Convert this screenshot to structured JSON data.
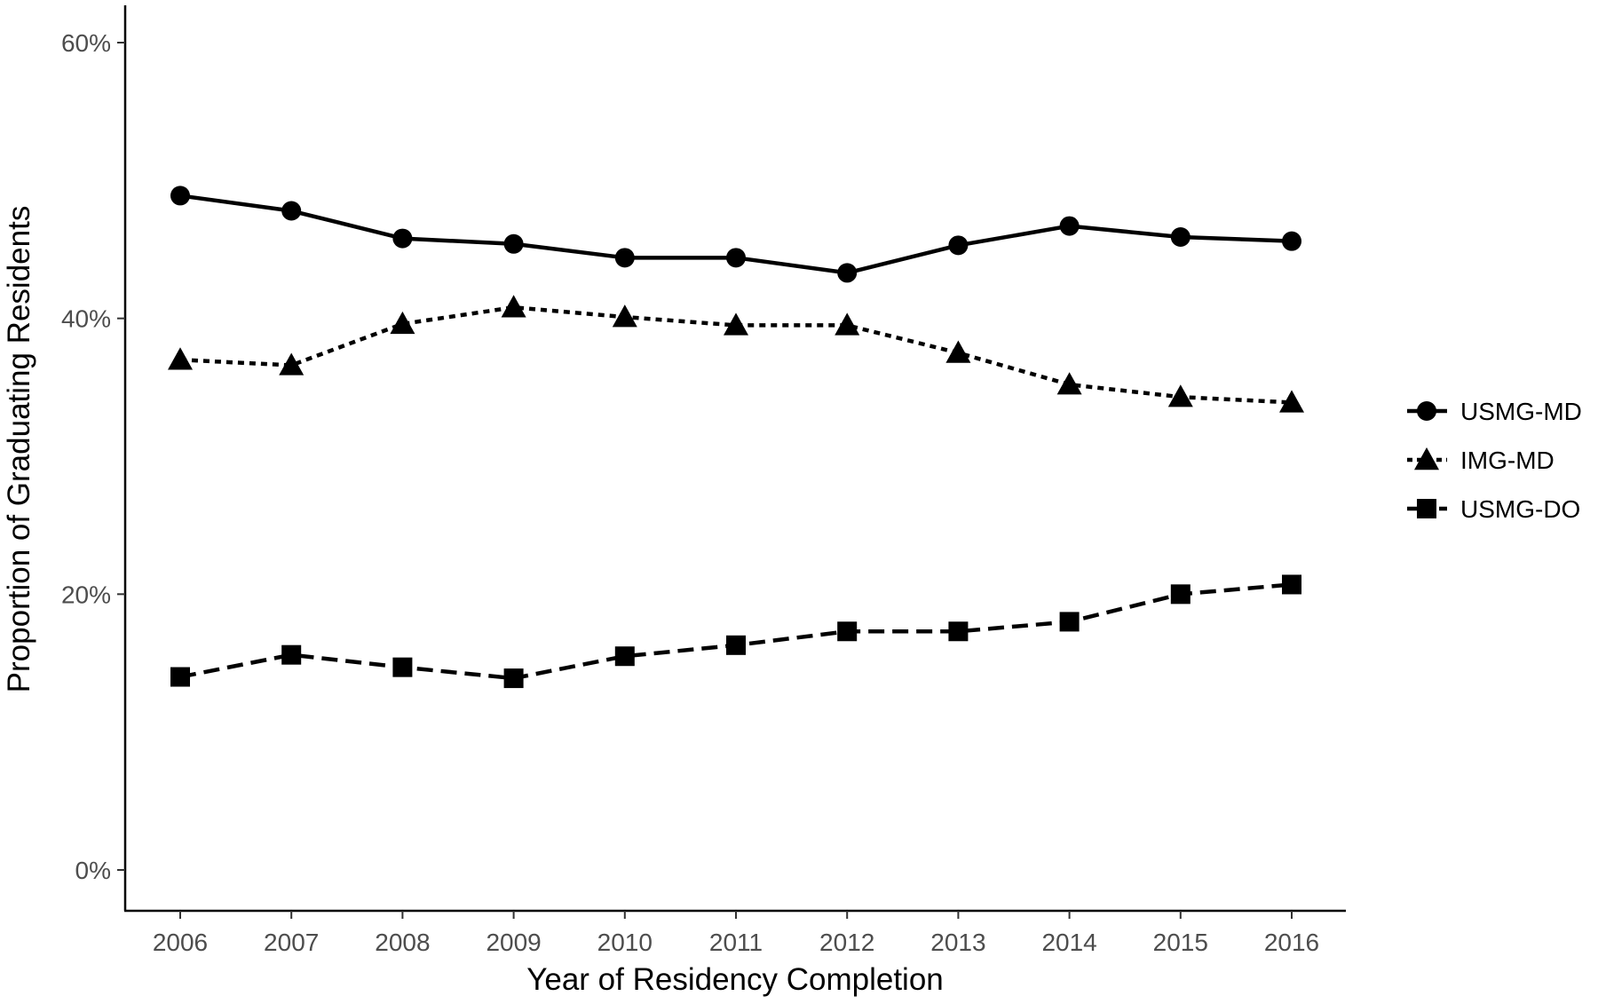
{
  "chart_data": {
    "type": "line",
    "title": "",
    "xlabel": "Year of Residency Completion",
    "ylabel": "Proportion of Graduating Residents",
    "categories": [
      "2006",
      "2007",
      "2008",
      "2009",
      "2010",
      "2011",
      "2012",
      "2013",
      "2014",
      "2015",
      "2016"
    ],
    "ylim": [
      0,
      0.6
    ],
    "yticks": [
      0,
      0.2,
      0.4,
      0.6
    ],
    "ytick_labels": [
      "0%",
      "20%",
      "40%",
      "60%"
    ],
    "grid": false,
    "legend_position": "right",
    "series": [
      {
        "name": "USMG-MD",
        "marker": "circle",
        "line_style": "solid",
        "values": [
          0.489,
          0.478,
          0.458,
          0.454,
          0.444,
          0.444,
          0.433,
          0.453,
          0.467,
          0.459,
          0.456
        ]
      },
      {
        "name": "IMG-MD",
        "marker": "triangle",
        "line_style": "dotted",
        "values": [
          0.37,
          0.366,
          0.396,
          0.408,
          0.401,
          0.395,
          0.395,
          0.375,
          0.352,
          0.343,
          0.339
        ]
      },
      {
        "name": "USMG-DO",
        "marker": "square",
        "line_style": "dashed",
        "values": [
          0.14,
          0.156,
          0.147,
          0.139,
          0.155,
          0.163,
          0.173,
          0.173,
          0.18,
          0.2,
          0.207
        ]
      }
    ],
    "colors": {
      "line": "#000000",
      "axis": "#000000",
      "tick_label": "#4d4d4d"
    }
  }
}
